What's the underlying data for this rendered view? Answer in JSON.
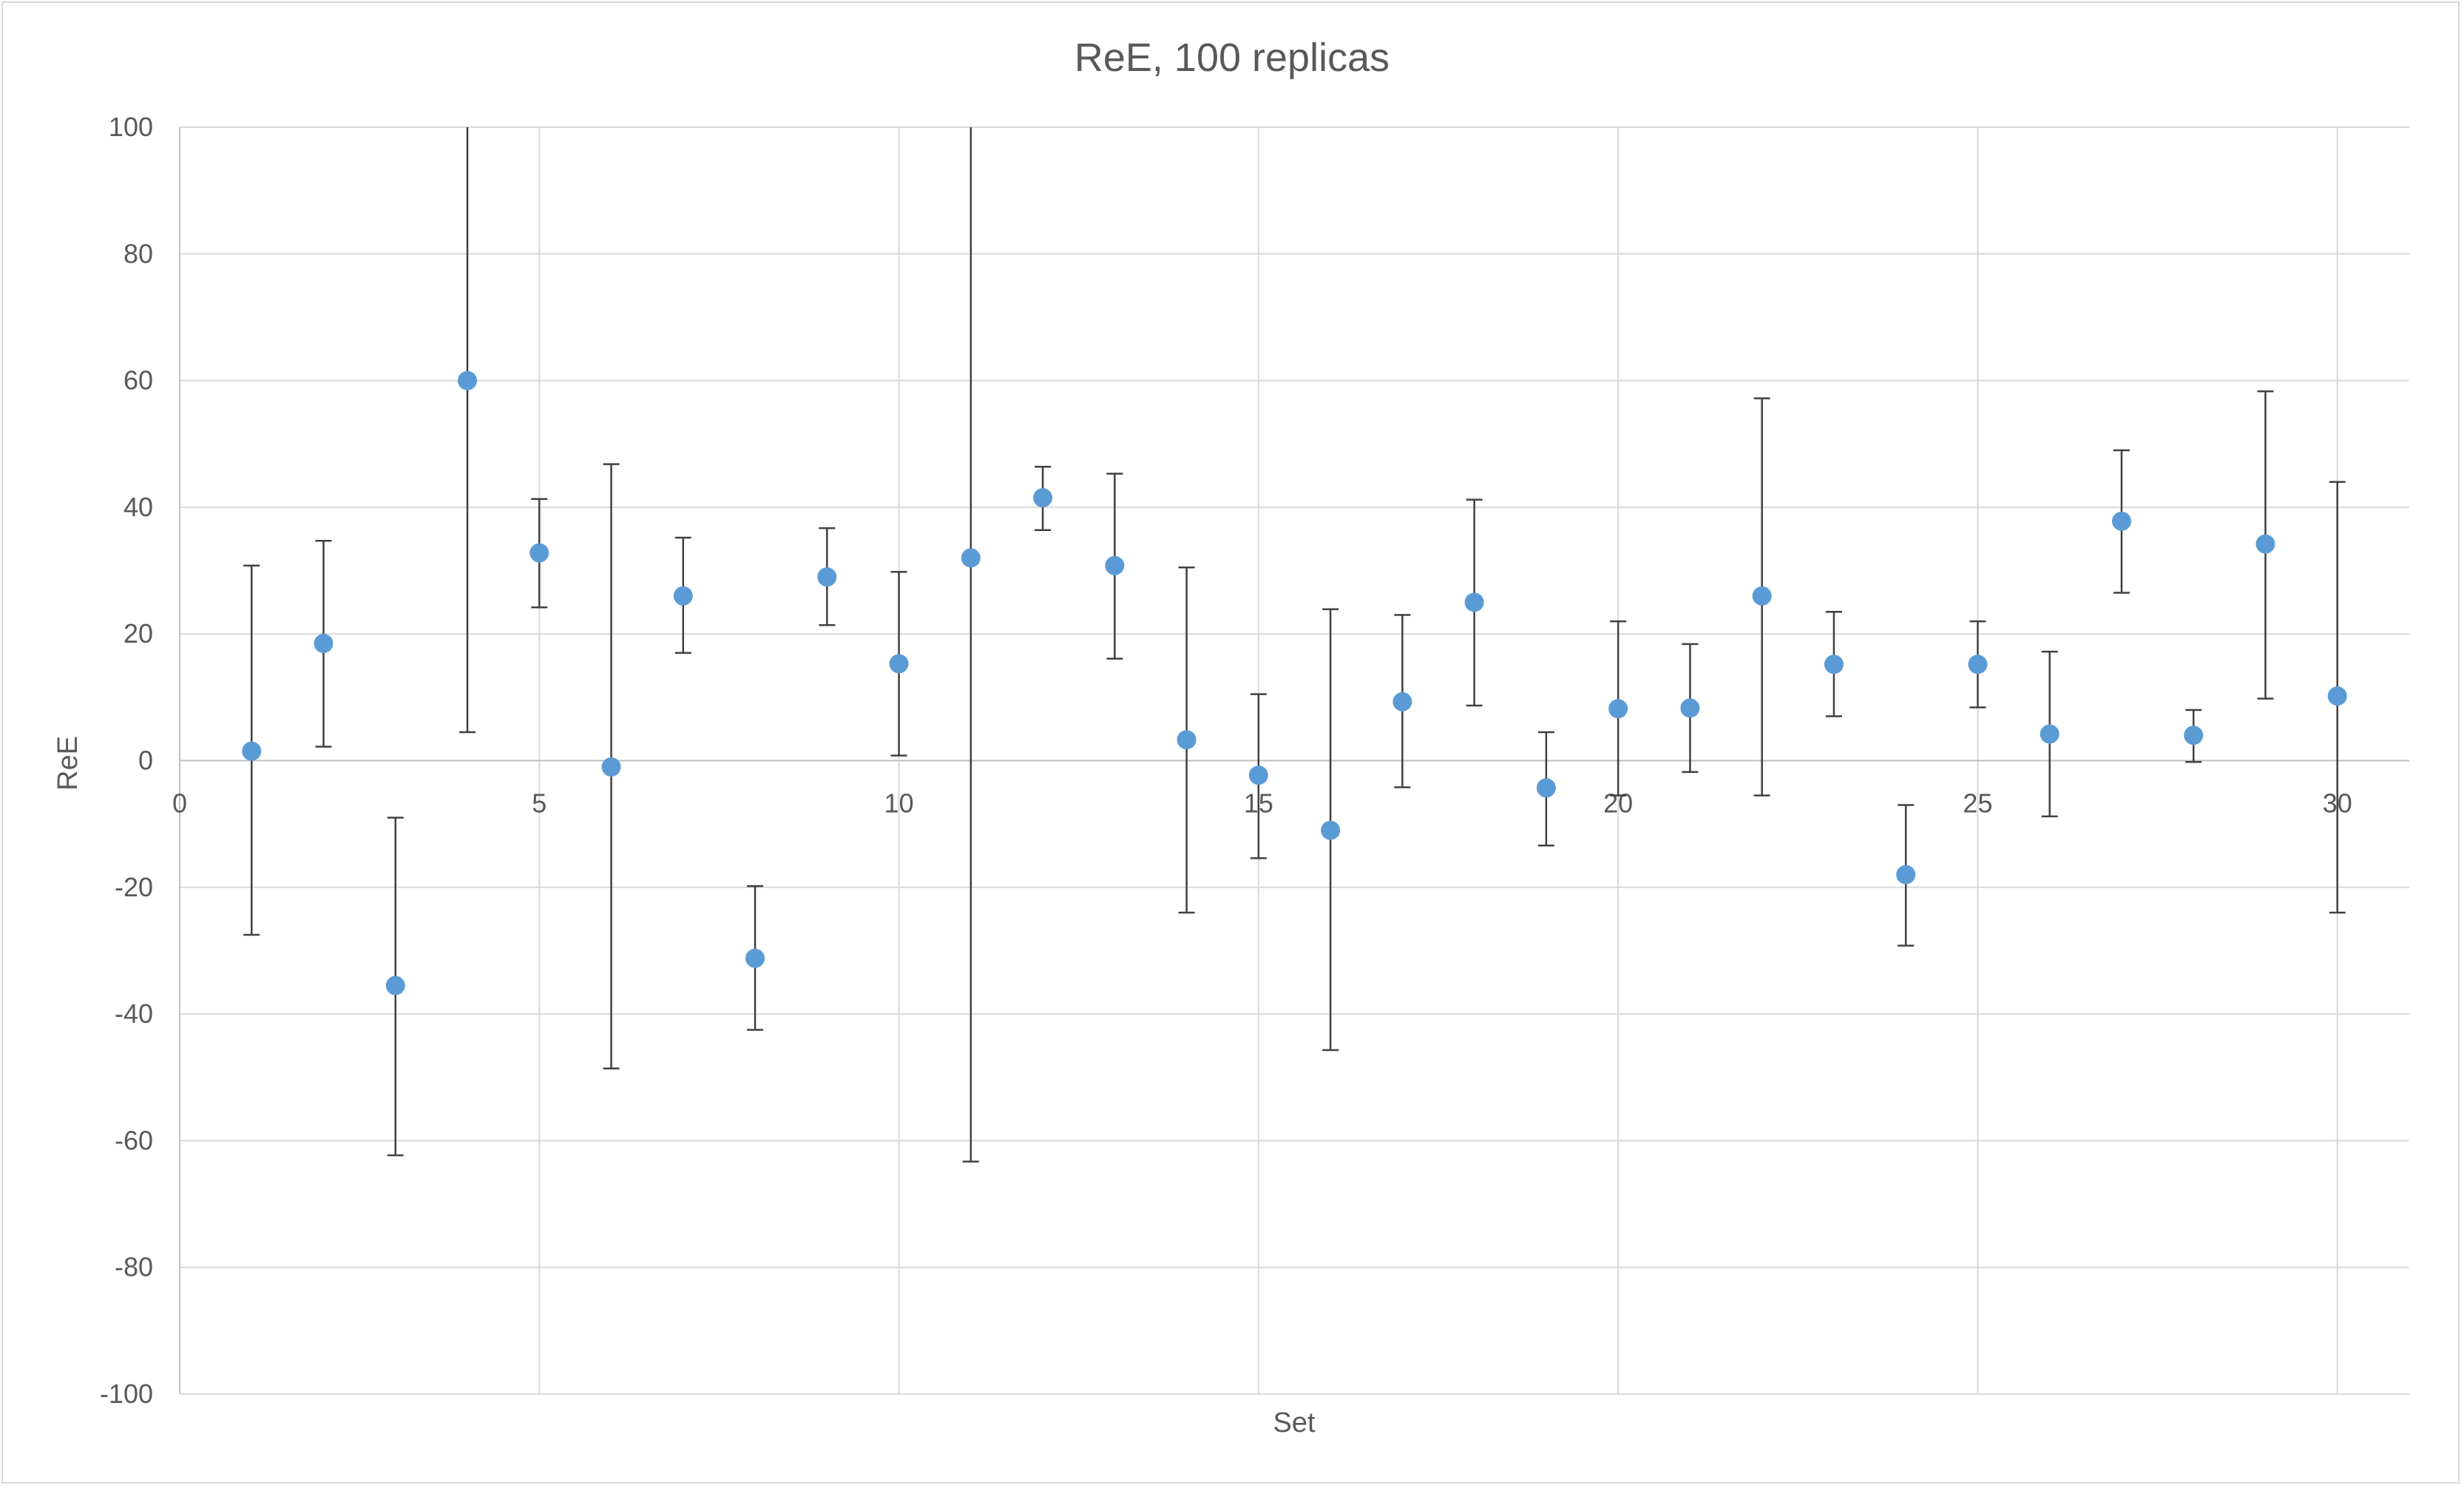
{
  "chart_data": {
    "type": "scatter",
    "title": "ReE, 100 replicas",
    "xlabel": "Set",
    "ylabel": "ReE",
    "xlim": [
      0,
      31
    ],
    "ylim": [
      -100,
      100
    ],
    "x_ticks": [
      0,
      5,
      10,
      15,
      20,
      25,
      30
    ],
    "y_ticks": [
      100,
      80,
      60,
      40,
      20,
      0,
      -20,
      -40,
      -60,
      -80,
      -100
    ],
    "grid": true,
    "legend": "none",
    "marker_color": "#5b9bd5",
    "errorbar_color": "#404040",
    "series": [
      {
        "x": [
          1,
          2,
          3,
          4,
          5,
          6,
          7,
          8,
          9,
          10,
          11,
          12,
          13,
          14,
          15,
          16,
          17,
          18,
          19,
          20,
          21,
          22,
          23,
          24,
          25,
          26,
          27,
          28,
          29,
          30
        ],
        "y": [
          1.5,
          18.5,
          -35.5,
          60,
          32.8,
          -1,
          26,
          -31.2,
          29,
          15.3,
          32,
          41.5,
          30.8,
          3.3,
          -2.3,
          -11,
          9.3,
          25,
          -4.3,
          8.2,
          8.3,
          26,
          15.2,
          -18,
          15.2,
          4.2,
          37.8,
          4,
          34.2,
          10.2
        ],
        "error_high": [
          30.8,
          34.7,
          -9,
          100,
          41.3,
          46.8,
          35.2,
          -19.8,
          36.7,
          29.8,
          100,
          46.4,
          45.3,
          30.5,
          10.5,
          23.9,
          23,
          41.2,
          4.5,
          22,
          18.4,
          57.2,
          23.5,
          -7,
          22,
          17.2,
          49,
          8,
          58.3,
          44
        ],
        "error_low": [
          -27.5,
          2.2,
          -62.3,
          4.5,
          24.2,
          -48.6,
          17,
          -42.5,
          21.4,
          0.8,
          -63.3,
          36.4,
          16.1,
          -24,
          -15.4,
          -45.7,
          -4.2,
          8.7,
          -13.4,
          -5.5,
          -1.8,
          -5.5,
          7,
          -29.2,
          8.4,
          -8.8,
          26.5,
          -0.2,
          9.8,
          -24
        ]
      }
    ]
  }
}
